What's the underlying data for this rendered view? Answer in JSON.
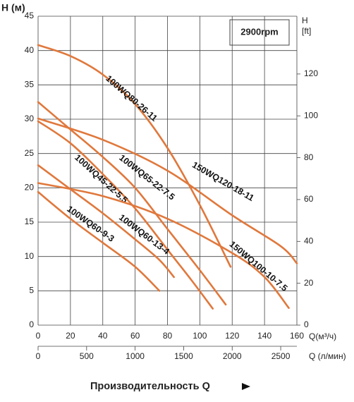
{
  "chart_data": {
    "type": "line",
    "annotation": "2900rpm",
    "y_label": "H (м)",
    "y2_label": "H",
    "y2_unit": "[ft]",
    "x_label": "Q(м³/ч)",
    "x2_label": "Q (л/мин)",
    "footer": "Производительность Q",
    "xlim": [
      0,
      160
    ],
    "xticks": [
      0,
      20,
      40,
      60,
      80,
      100,
      120,
      140,
      160
    ],
    "ylim": [
      0,
      45
    ],
    "yticks": [
      0,
      5,
      10,
      15,
      20,
      25,
      30,
      35,
      40,
      45
    ],
    "y2lim": [
      0,
      147.6
    ],
    "y2ticks": [
      0,
      20,
      40,
      60,
      80,
      100,
      120
    ],
    "x2lim": [
      0,
      2666.7
    ],
    "x2ticks": [
      0,
      500,
      1000,
      1500,
      2000,
      2500
    ],
    "grid": true,
    "series": [
      {
        "name": "100WQ80-26-11",
        "color": "#e0783c",
        "x": [
          0,
          20,
          40,
          60,
          80,
          100,
          119
        ],
        "values": [
          40.8,
          39.2,
          36.5,
          32.2,
          25.8,
          17.5,
          8.5
        ]
      },
      {
        "name": "100WQ65-22-7.5",
        "color": "#e0783c",
        "x": [
          0,
          20,
          40,
          60,
          80,
          100,
          116
        ],
        "values": [
          32.5,
          28.5,
          24.5,
          20,
          14,
          8,
          3
        ]
      },
      {
        "name": "150WQ120-18-11",
        "color": "#e0783c",
        "x": [
          0,
          40,
          80,
          120,
          150,
          160
        ],
        "values": [
          30.1,
          27,
          22.5,
          16,
          11.5,
          9
        ]
      },
      {
        "name": "100WQ45-22-5.5",
        "color": "#e0783c",
        "x": [
          0,
          20,
          40,
          60,
          80,
          95,
          108
        ],
        "values": [
          29.7,
          26.5,
          22,
          17,
          11,
          6.5,
          2.4
        ]
      },
      {
        "name": "100WQ60-13-4",
        "color": "#e0783c",
        "x": [
          0,
          20,
          40,
          60,
          75,
          84
        ],
        "values": [
          23.3,
          19.8,
          16.3,
          12.5,
          9.5,
          7
        ]
      },
      {
        "name": "150WQ100-10-7.5",
        "color": "#e0783c",
        "x": [
          0,
          40,
          80,
          120,
          140,
          155
        ],
        "values": [
          20.7,
          18.8,
          15.5,
          10.5,
          7,
          2.5
        ]
      },
      {
        "name": "100WQ60-9-3",
        "color": "#e0783c",
        "x": [
          0,
          20,
          40,
          60,
          75
        ],
        "values": [
          19.4,
          15.5,
          12,
          8.5,
          5
        ]
      }
    ]
  }
}
